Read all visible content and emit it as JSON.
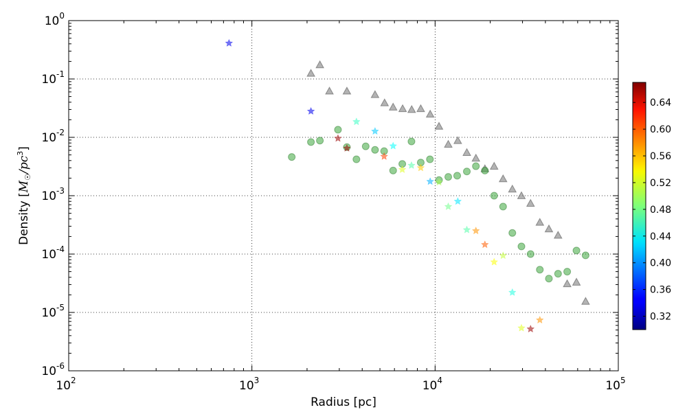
{
  "chart_data": {
    "type": "scatter",
    "title": "",
    "xlabel": "Radius [pc]",
    "ylabel": "Density [",
    "ylabel_math": "M",
    "ylabel_sub": "☉",
    "ylabel_unit": "/pc",
    "ylabel_sup": "3",
    "ylabel_end": "]",
    "xscale": "log",
    "yscale": "log",
    "xlim": [
      100,
      100000
    ],
    "ylim": [
      1e-06,
      1
    ],
    "grid": "dotted",
    "x_tick_labels": [
      {
        "base": "10",
        "exp": "2"
      },
      {
        "base": "10",
        "exp": "3"
      },
      {
        "base": "10",
        "exp": "4"
      },
      {
        "base": "10",
        "exp": "5"
      }
    ],
    "y_tick_labels": [
      {
        "base": "10",
        "exp": "-6"
      },
      {
        "base": "10",
        "exp": "-5"
      },
      {
        "base": "10",
        "exp": "-4"
      },
      {
        "base": "10",
        "exp": "-3"
      },
      {
        "base": "10",
        "exp": "-2"
      },
      {
        "base": "10",
        "exp": "-1"
      },
      {
        "base": "10",
        "exp": "0"
      }
    ],
    "colorbar": {
      "cmap": "jet",
      "range": [
        0.3,
        0.67
      ],
      "ticks": [
        "0.32",
        "0.36",
        "0.40",
        "0.44",
        "0.48",
        "0.52",
        "0.56",
        "0.60",
        "0.64"
      ]
    },
    "series": [
      {
        "marker": "triangle",
        "color": "#808080",
        "x": [
          2100,
          2350,
          2650,
          3300,
          4700,
          5300,
          5900,
          6650,
          7450,
          8350,
          9400,
          10500,
          11800,
          13300,
          14900,
          16700,
          18700,
          21000,
          23500,
          26400,
          29600,
          33200,
          37300,
          41800,
          46900,
          52600,
          59100,
          66300
        ],
        "y": [
          0.125,
          0.175,
          0.062,
          0.062,
          0.054,
          0.039,
          0.033,
          0.031,
          0.03,
          0.031,
          0.025,
          0.0155,
          0.0076,
          0.0088,
          0.0055,
          0.0044,
          0.0029,
          0.0032,
          0.00195,
          0.0013,
          0.001,
          0.00074,
          0.00035,
          0.00027,
          0.00021,
          3.1e-05,
          3.3e-05,
          1.55e-05
        ]
      },
      {
        "marker": "circle",
        "color": "#2ca02c",
        "x": [
          1650,
          2100,
          2350,
          2950,
          3300,
          3720,
          4180,
          4700,
          5270,
          5900,
          6620,
          7430,
          8350,
          9370,
          10500,
          11800,
          13200,
          14900,
          16700,
          18700,
          21000,
          23500,
          26400,
          29600,
          33200,
          37300,
          41800,
          46900,
          52600,
          59100,
          66300
        ],
        "y": [
          0.0046,
          0.0083,
          0.0088,
          0.0135,
          0.0068,
          0.0042,
          0.007,
          0.0061,
          0.0058,
          0.0027,
          0.0035,
          0.0085,
          0.0037,
          0.0042,
          0.00185,
          0.0021,
          0.0022,
          0.0026,
          0.0032,
          0.0027,
          0.001,
          0.00065,
          0.00023,
          0.000135,
          0.0001,
          5.4e-05,
          3.8e-05,
          4.6e-05,
          5e-05,
          0.000115,
          9.5e-05
        ]
      },
      {
        "marker": "star",
        "cmap_values": [
          0.34,
          0.34,
          0.66,
          0.66,
          0.46,
          0.42,
          0.6,
          0.44,
          0.52,
          0.47,
          0.55,
          0.41,
          0.5,
          0.48,
          0.43,
          0.47,
          0.57,
          0.59,
          0.53,
          0.51,
          0.45,
          0.52,
          0.66,
          0.57
        ],
        "x": [
          750,
          2100,
          2950,
          3300,
          3720,
          4700,
          5270,
          5900,
          6620,
          7430,
          8350,
          9400,
          10500,
          11800,
          13300,
          14900,
          16700,
          18700,
          21000,
          23500,
          26400,
          29600,
          33200,
          37300
        ],
        "y": [
          0.41,
          0.028,
          0.0096,
          0.0065,
          0.0185,
          0.0127,
          0.0047,
          0.0071,
          0.0028,
          0.0033,
          0.003,
          0.00175,
          0.0017,
          0.00065,
          0.0008,
          0.00026,
          0.00025,
          0.000145,
          7.3e-05,
          9.4e-05,
          2.2e-05,
          5.4e-06,
          5.2e-06,
          7.4e-06
        ]
      }
    ]
  }
}
